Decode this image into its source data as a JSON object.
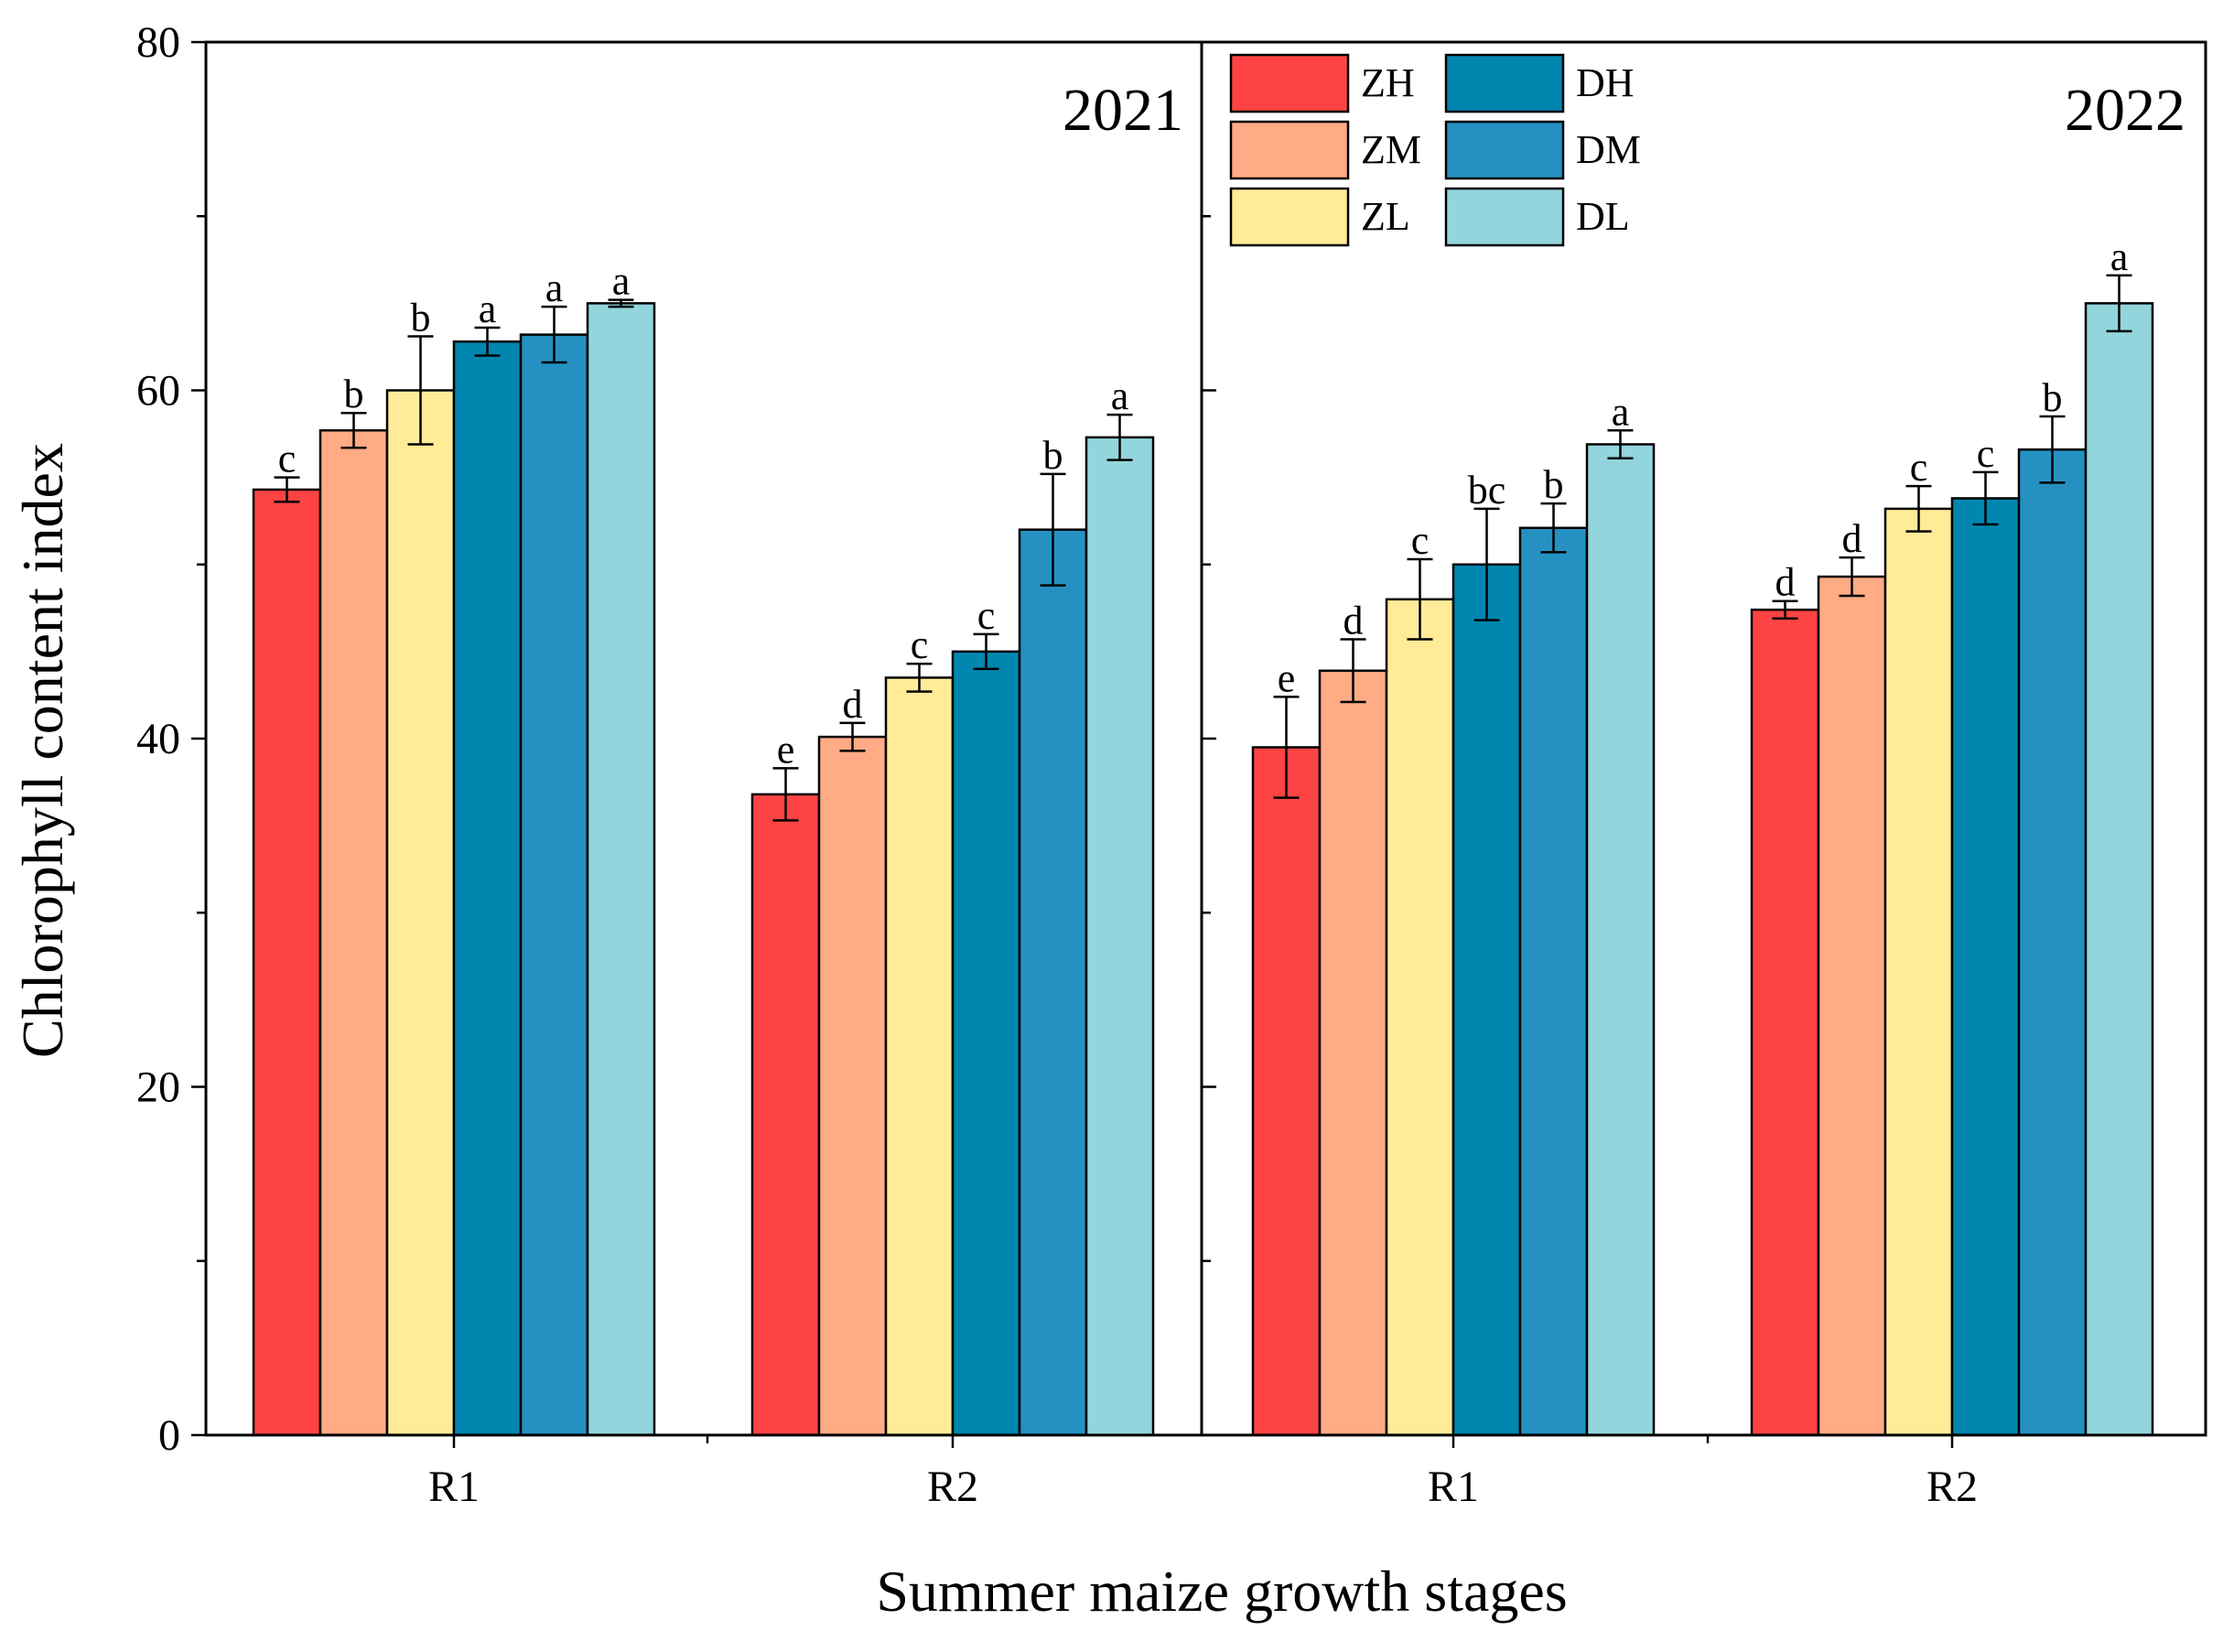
{
  "chart_data": {
    "type": "bar",
    "ylabel": "Chlorophyll content index",
    "xlabel": "Summer maize growth stages",
    "ylim": [
      0,
      80
    ],
    "yticks": [
      0,
      20,
      40,
      60,
      80
    ],
    "colors": {
      "ZH": "#fd4343",
      "ZM": "#ffab85",
      "ZL": "#ffeb98",
      "DH": "#0186b0",
      "DM": "#2591c2",
      "DL": "#93d5dc",
      "frame": "#000000"
    },
    "legend": [
      "ZH",
      "ZM",
      "ZL",
      "DH",
      "DM",
      "DL"
    ],
    "panels": [
      {
        "year": "2021",
        "groups": [
          {
            "category": "R1",
            "values": [
              54.3,
              57.7,
              60.0,
              62.8,
              63.2,
              65.0
            ],
            "errors": [
              0.7,
              1.0,
              3.1,
              0.8,
              1.6,
              0.2
            ],
            "letters": [
              "c",
              "b",
              "b",
              "a",
              "a",
              "a"
            ]
          },
          {
            "category": "R2",
            "values": [
              36.8,
              40.1,
              43.5,
              45.0,
              52.0,
              57.3
            ],
            "errors": [
              1.5,
              0.8,
              0.8,
              1.0,
              3.2,
              1.3
            ],
            "letters": [
              "e",
              "d",
              "c",
              "c",
              "b",
              "a"
            ]
          }
        ]
      },
      {
        "year": "2022",
        "groups": [
          {
            "category": "R1",
            "values": [
              39.5,
              43.9,
              48.0,
              50.0,
              52.1,
              56.9
            ],
            "errors": [
              2.9,
              1.8,
              2.3,
              3.2,
              1.4,
              0.8
            ],
            "letters": [
              "e",
              "d",
              "c",
              "bc",
              "b",
              "a"
            ]
          },
          {
            "category": "R2",
            "values": [
              47.4,
              49.3,
              53.2,
              53.8,
              56.6,
              65.0
            ],
            "errors": [
              0.5,
              1.1,
              1.3,
              1.5,
              1.9,
              1.6
            ],
            "letters": [
              "d",
              "d",
              "c",
              "c",
              "b",
              "a"
            ]
          }
        ]
      }
    ]
  }
}
